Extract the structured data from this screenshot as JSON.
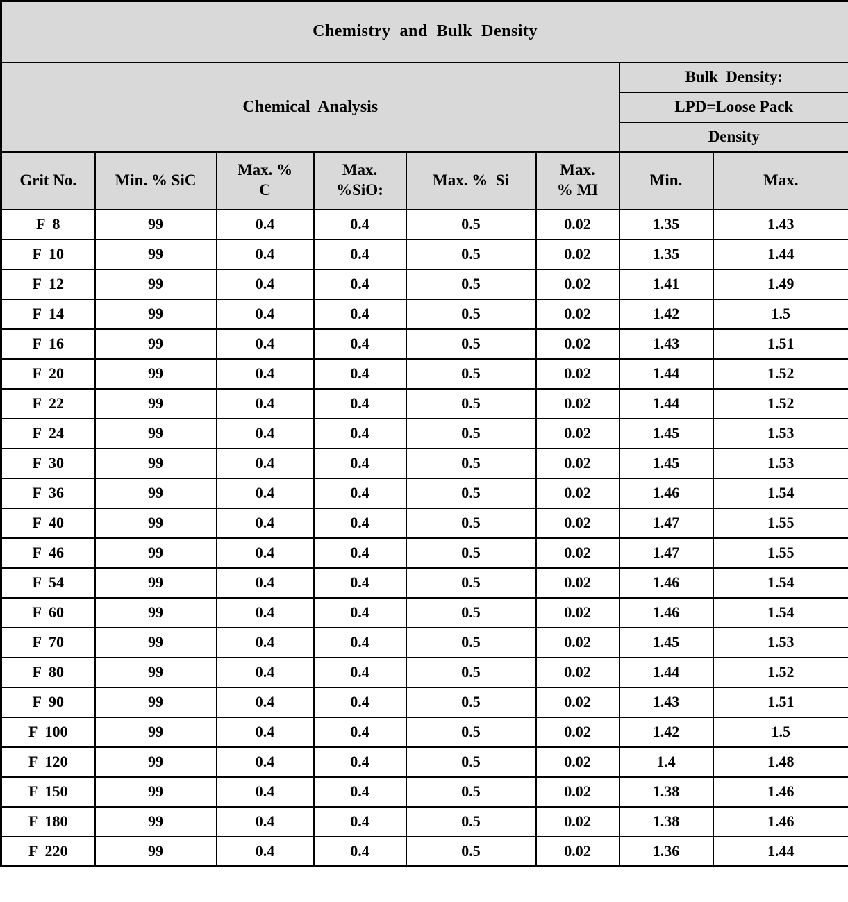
{
  "title": "Chemistry  and  Bulk  Density",
  "header": {
    "chemical_analysis": "Chemical  Analysis",
    "bulk_density_line1": "Bulk  Density:",
    "bulk_density_line2": "LPD=Loose Pack",
    "bulk_density_line3": "Density"
  },
  "columns": {
    "grit": "Grit No.",
    "sic": "Min. % SiC",
    "c": "Max. %\nC",
    "sio": "Max.\n%SiO:",
    "si": "Max. %  Si",
    "mi": "Max.\n% MI",
    "min": "Min.",
    "max": "Max."
  },
  "colors": {
    "header_bg": "#d9d9d9",
    "border": "#000000",
    "row_bg": "#ffffff"
  },
  "chart_data": {
    "type": "table",
    "title": "Chemistry and Bulk Density",
    "column_headers": [
      "Grit No.",
      "Min. % SiC",
      "Max. % C",
      "Max. %SiO:",
      "Max. %  Si",
      "Max. % MI",
      "Min.",
      "Max."
    ]
  },
  "rows": [
    [
      "F  8",
      "99",
      "0.4",
      "0.4",
      "0.5",
      "0.02",
      "1.35",
      "1.43"
    ],
    [
      "F  10",
      "99",
      "0.4",
      "0.4",
      "0.5",
      "0.02",
      "1.35",
      "1.44"
    ],
    [
      "F  12",
      "99",
      "0.4",
      "0.4",
      "0.5",
      "0.02",
      "1.41",
      "1.49"
    ],
    [
      "F  14",
      "99",
      "0.4",
      "0.4",
      "0.5",
      "0.02",
      "1.42",
      "1.5"
    ],
    [
      "F  16",
      "99",
      "0.4",
      "0.4",
      "0.5",
      "0.02",
      "1.43",
      "1.51"
    ],
    [
      "F  20",
      "99",
      "0.4",
      "0.4",
      "0.5",
      "0.02",
      "1.44",
      "1.52"
    ],
    [
      "F  22",
      "99",
      "0.4",
      "0.4",
      "0.5",
      "0.02",
      "1.44",
      "1.52"
    ],
    [
      "F  24",
      "99",
      "0.4",
      "0.4",
      "0.5",
      "0.02",
      "1.45",
      "1.53"
    ],
    [
      "F  30",
      "99",
      "0.4",
      "0.4",
      "0.5",
      "0.02",
      "1.45",
      "1.53"
    ],
    [
      "F  36",
      "99",
      "0.4",
      "0.4",
      "0.5",
      "0.02",
      "1.46",
      "1.54"
    ],
    [
      "F  40",
      "99",
      "0.4",
      "0.4",
      "0.5",
      "0.02",
      "1.47",
      "1.55"
    ],
    [
      "F  46",
      "99",
      "0.4",
      "0.4",
      "0.5",
      "0.02",
      "1.47",
      "1.55"
    ],
    [
      "F  54",
      "99",
      "0.4",
      "0.4",
      "0.5",
      "0.02",
      "1.46",
      "1.54"
    ],
    [
      "F  60",
      "99",
      "0.4",
      "0.4",
      "0.5",
      "0.02",
      "1.46",
      "1.54"
    ],
    [
      "F  70",
      "99",
      "0.4",
      "0.4",
      "0.5",
      "0.02",
      "1.45",
      "1.53"
    ],
    [
      "F  80",
      "99",
      "0.4",
      "0.4",
      "0.5",
      "0.02",
      "1.44",
      "1.52"
    ],
    [
      "F  90",
      "99",
      "0.4",
      "0.4",
      "0.5",
      "0.02",
      "1.43",
      "1.51"
    ],
    [
      "F  100",
      "99",
      "0.4",
      "0.4",
      "0.5",
      "0.02",
      "1.42",
      "1.5"
    ],
    [
      "F  120",
      "99",
      "0.4",
      "0.4",
      "0.5",
      "0.02",
      "1.4",
      "1.48"
    ],
    [
      "F  150",
      "99",
      "0.4",
      "0.4",
      "0.5",
      "0.02",
      "1.38",
      "1.46"
    ],
    [
      "F  180",
      "99",
      "0.4",
      "0.4",
      "0.5",
      "0.02",
      "1.38",
      "1.46"
    ],
    [
      "F  220",
      "99",
      "0.4",
      "0.4",
      "0.5",
      "0.02",
      "1.36",
      "1.44"
    ]
  ]
}
